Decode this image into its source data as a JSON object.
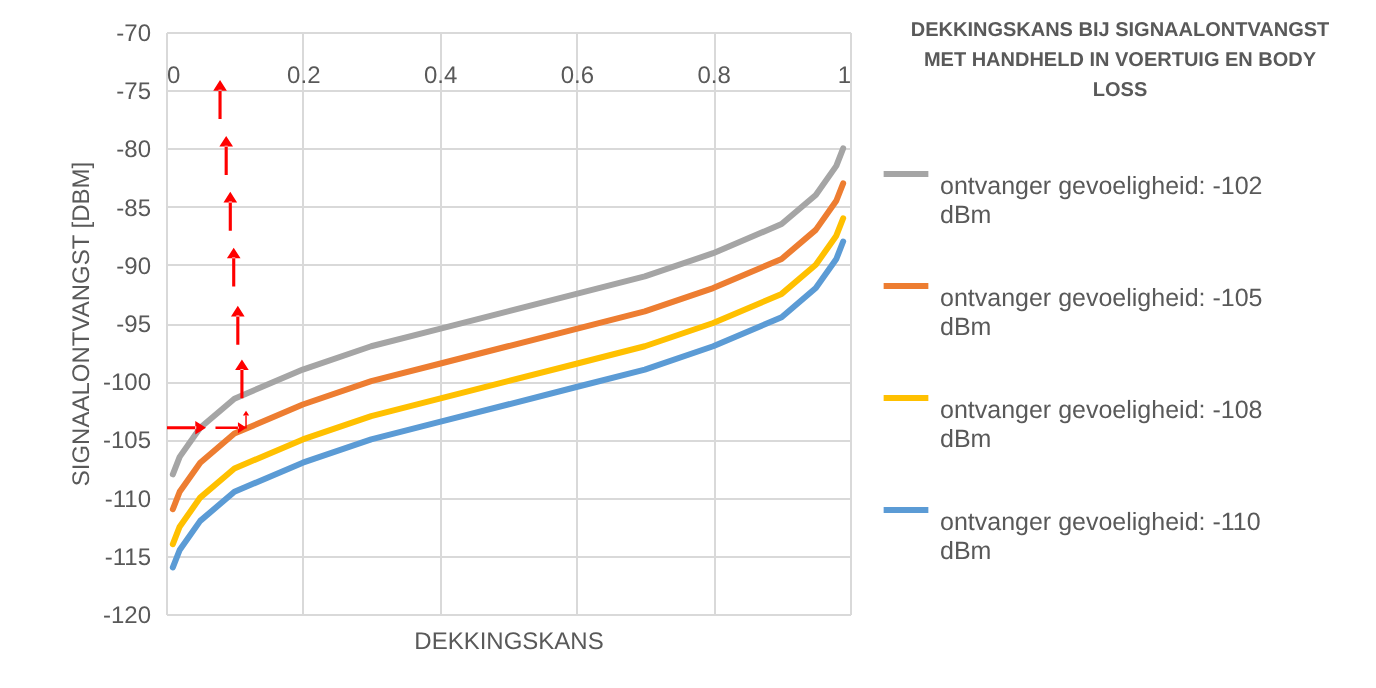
{
  "chart_data": {
    "type": "line",
    "title": "DEKKINGSKANS BIJ SIGNAALONTVANGST MET HANDHELD IN VOERTUIG EN BODY LOSS",
    "xlabel": "DEKKINGSKANS",
    "ylabel": "SIGNAALONTVANGST [DBM]",
    "x": [
      0.01,
      0.02,
      0.05,
      0.1,
      0.2,
      0.3,
      0.4,
      0.5,
      0.6,
      0.7,
      0.8,
      0.9,
      0.95,
      0.98,
      0.99
    ],
    "series": [
      {
        "name": "ontvanger gevoeligheid: -102 dBm",
        "color": "#a5a5a5",
        "values": [
          -108,
          -106.5,
          -104,
          -101.5,
          -99,
          -97,
          -95.5,
          -94,
          -92.5,
          -91,
          -89,
          -86.5,
          -84,
          -81.5,
          -80
        ]
      },
      {
        "name": "ontvanger gevoeligheid: -105 dBm",
        "color": "#ed7d31",
        "values": [
          -111,
          -109.5,
          -107,
          -104.5,
          -102,
          -100,
          -98.5,
          -97,
          -95.5,
          -94,
          -92,
          -89.5,
          -87,
          -84.5,
          -83
        ]
      },
      {
        "name": "ontvanger gevoeligheid: -108 dBm",
        "color": "#ffc000",
        "values": [
          -114,
          -112.5,
          -110,
          -107.5,
          -105,
          -103,
          -101.5,
          -100,
          -98.5,
          -97,
          -95,
          -92.5,
          -90,
          -87.5,
          -86
        ]
      },
      {
        "name": "ontvanger gevoeligheid: -110 dBm",
        "color": "#5b9bd5",
        "values": [
          -116,
          -114.5,
          -112,
          -109.5,
          -107,
          -105,
          -103.5,
          -102,
          -100.5,
          -99,
          -97,
          -94.5,
          -92,
          -89.5,
          -88
        ]
      }
    ],
    "xlim": [
      0,
      1
    ],
    "xticks": [
      0,
      0.2,
      0.4,
      0.6,
      0.8,
      1
    ],
    "ylim": [
      -120,
      -70
    ],
    "yticks": [
      -120,
      -115,
      -110,
      -105,
      -100,
      -95,
      -90,
      -85,
      -80,
      -75,
      -70
    ],
    "grid": true,
    "legend": "right",
    "marker": "none",
    "line_style": "solid"
  }
}
